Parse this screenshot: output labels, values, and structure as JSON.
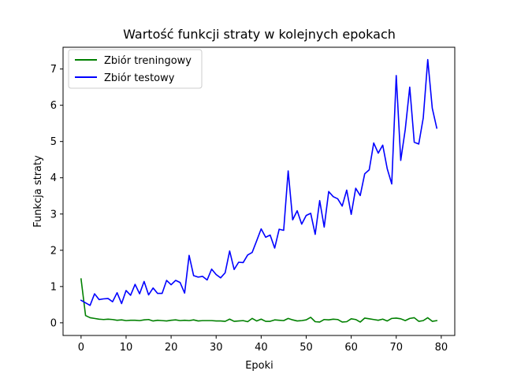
{
  "chart_data": {
    "type": "line",
    "title": "Wartość funkcji straty w kolejnych epokach",
    "xlabel": "Epoki",
    "ylabel": "Funkcja straty",
    "xlim": [
      -4,
      83
    ],
    "ylim": [
      -0.35,
      7.6
    ],
    "xticks": [
      0,
      10,
      20,
      30,
      40,
      50,
      60,
      70,
      80
    ],
    "yticks": [
      0,
      1,
      2,
      3,
      4,
      5,
      6,
      7
    ],
    "legend_position": "top-left",
    "grid": false,
    "series": [
      {
        "name": "Zbiór treningowy",
        "color": "#008000",
        "x": [
          0,
          1,
          2,
          3,
          4,
          5,
          6,
          7,
          8,
          9,
          10,
          11,
          12,
          13,
          14,
          15,
          16,
          17,
          18,
          19,
          20,
          21,
          22,
          23,
          24,
          25,
          26,
          27,
          28,
          29,
          30,
          31,
          32,
          33,
          34,
          35,
          36,
          37,
          38,
          39,
          40,
          41,
          42,
          43,
          44,
          45,
          46,
          47,
          48,
          49,
          50,
          51,
          52,
          53,
          54,
          55,
          56,
          57,
          58,
          59,
          60,
          61,
          62,
          63,
          64,
          65,
          66,
          67,
          68,
          69,
          70,
          71,
          72,
          73,
          74,
          75,
          76,
          77,
          78,
          79
        ],
        "values": [
          1.21,
          0.2,
          0.14,
          0.12,
          0.1,
          0.09,
          0.1,
          0.09,
          0.07,
          0.08,
          0.06,
          0.07,
          0.07,
          0.06,
          0.08,
          0.09,
          0.05,
          0.07,
          0.06,
          0.05,
          0.07,
          0.08,
          0.06,
          0.07,
          0.06,
          0.08,
          0.05,
          0.06,
          0.06,
          0.06,
          0.05,
          0.05,
          0.04,
          0.1,
          0.04,
          0.05,
          0.06,
          0.03,
          0.12,
          0.05,
          0.1,
          0.04,
          0.04,
          0.08,
          0.07,
          0.06,
          0.12,
          0.08,
          0.05,
          0.06,
          0.08,
          0.15,
          0.03,
          0.02,
          0.09,
          0.08,
          0.1,
          0.09,
          0.02,
          0.03,
          0.11,
          0.09,
          0.02,
          0.13,
          0.11,
          0.09,
          0.07,
          0.1,
          0.05,
          0.12,
          0.13,
          0.11,
          0.06,
          0.12,
          0.14,
          0.04,
          0.06,
          0.14,
          0.04,
          0.06
        ]
      },
      {
        "name": "Zbiór testowy",
        "color": "#0000ff",
        "x": [
          0,
          1,
          2,
          3,
          4,
          5,
          6,
          7,
          8,
          9,
          10,
          11,
          12,
          13,
          14,
          15,
          16,
          17,
          18,
          19,
          20,
          21,
          22,
          23,
          24,
          25,
          26,
          27,
          28,
          29,
          30,
          31,
          32,
          33,
          34,
          35,
          36,
          37,
          38,
          39,
          40,
          41,
          42,
          43,
          44,
          45,
          46,
          47,
          48,
          49,
          50,
          51,
          52,
          53,
          54,
          55,
          56,
          57,
          58,
          59,
          60,
          61,
          62,
          63,
          64,
          65,
          66,
          67,
          68,
          69,
          70,
          71,
          72,
          73,
          74,
          75,
          76,
          77,
          78,
          79
        ],
        "values": [
          0.62,
          0.55,
          0.48,
          0.8,
          0.64,
          0.66,
          0.67,
          0.58,
          0.83,
          0.53,
          0.89,
          0.76,
          1.06,
          0.8,
          1.14,
          0.77,
          0.96,
          0.81,
          0.81,
          1.17,
          1.05,
          1.17,
          1.11,
          0.82,
          1.86,
          1.3,
          1.26,
          1.28,
          1.18,
          1.48,
          1.33,
          1.24,
          1.38,
          1.98,
          1.47,
          1.67,
          1.66,
          1.87,
          1.94,
          2.26,
          2.59,
          2.36,
          2.42,
          2.06,
          2.58,
          2.55,
          4.19,
          2.84,
          3.09,
          2.72,
          2.96,
          3.02,
          2.44,
          3.37,
          2.64,
          3.62,
          3.48,
          3.42,
          3.22,
          3.66,
          2.99,
          3.71,
          3.51,
          4.11,
          4.22,
          4.96,
          4.68,
          4.9,
          4.25,
          3.83,
          6.82,
          4.48,
          5.33,
          6.5,
          4.98,
          4.93,
          5.65,
          7.26,
          5.92,
          5.37
        ]
      }
    ]
  }
}
